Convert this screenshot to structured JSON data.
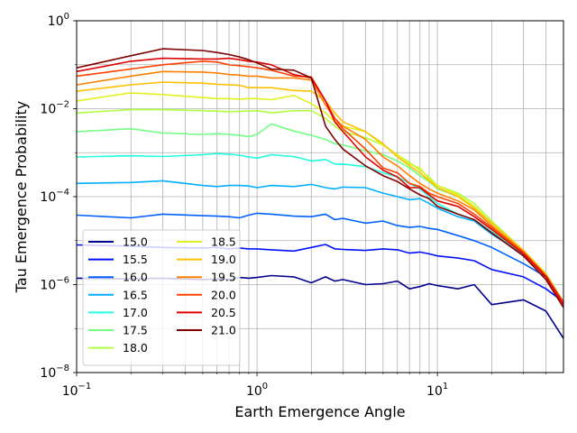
{
  "chart_data": {
    "type": "line",
    "title": "",
    "xlabel": "Earth Emergence Angle",
    "ylabel": "Tau Emergence Probability",
    "xscale": "log",
    "yscale": "log",
    "xlim": [
      0.1,
      50
    ],
    "ylim": [
      1e-08,
      1
    ],
    "grid": true,
    "legend_position": "lower-left",
    "x_major_ticks": [
      {
        "value": 0.1,
        "label": "10",
        "exp": "−1"
      },
      {
        "value": 1,
        "label": "10",
        "exp": "0"
      },
      {
        "value": 10,
        "label": "10",
        "exp": "1"
      }
    ],
    "y_major_ticks": [
      {
        "value": 1e-08,
        "label": "10",
        "exp": "−8"
      },
      {
        "value": 1e-06,
        "label": "10",
        "exp": "−6"
      },
      {
        "value": 0.0001,
        "label": "10",
        "exp": "−4"
      },
      {
        "value": 0.01,
        "label": "10",
        "exp": "−2"
      },
      {
        "value": 1,
        "label": "10",
        "exp": "0"
      }
    ],
    "x": [
      0.1,
      0.2,
      0.3,
      0.5,
      0.6,
      0.7,
      0.8,
      0.9,
      1.0,
      1.2,
      1.6,
      2.0,
      2.4,
      2.7,
      3.0,
      4.0,
      5.0,
      6.0,
      7.0,
      8.0,
      9.0,
      10.0,
      13.0,
      16.0,
      20.0,
      30.0,
      40.0,
      50.0
    ],
    "series": [
      {
        "name": "15.0",
        "color": "#00008f",
        "values": [
          1.4e-06,
          1.35e-06,
          1.4e-06,
          1.3e-06,
          1.35e-06,
          1.3e-06,
          1.45e-06,
          1.4e-06,
          1.45e-06,
          1.6e-06,
          1.5e-06,
          1.1e-06,
          1.5e-06,
          1.2e-06,
          1.3e-06,
          1e-06,
          1.05e-06,
          1.2e-06,
          8e-07,
          9e-07,
          1.05e-06,
          9.5e-07,
          8e-07,
          1e-06,
          3.5e-07,
          4.5e-07,
          2.5e-07,
          6e-08
        ]
      },
      {
        "name": "15.5",
        "color": "#0010ff",
        "values": [
          8e-06,
          7.5e-06,
          7e-06,
          6.8e-06,
          7e-06,
          6.5e-06,
          6.8e-06,
          6.5e-06,
          6.5e-06,
          6.2e-06,
          5.8e-06,
          7e-06,
          8.2e-06,
          6.5e-06,
          6.3e-06,
          6e-06,
          6.5e-06,
          6.2e-06,
          5.2e-06,
          5.5e-06,
          5e-06,
          4.5e-06,
          4e-06,
          3.5e-06,
          2.2e-06,
          1.5e-06,
          8e-07,
          4e-07
        ]
      },
      {
        "name": "16.0",
        "color": "#0060ff",
        "values": [
          3.8e-05,
          3.3e-05,
          4e-05,
          3.7e-05,
          3.6e-05,
          3.5e-05,
          3.3e-05,
          3.8e-05,
          4.2e-05,
          4e-05,
          3.6e-05,
          3.5e-05,
          4e-05,
          3e-05,
          3.2e-05,
          2.5e-05,
          2.8e-05,
          2.2e-05,
          2e-05,
          2.1e-05,
          1.9e-05,
          1.8e-05,
          1.3e-05,
          1e-05,
          7e-06,
          3e-06,
          1.5e-06,
          4e-07
        ]
      },
      {
        "name": "16.5",
        "color": "#00b0ff",
        "values": [
          0.0002,
          0.00021,
          0.00023,
          0.00018,
          0.00017,
          0.00018,
          0.00018,
          0.000175,
          0.00016,
          0.00018,
          0.00017,
          0.00019,
          0.00016,
          0.00015,
          0.000165,
          0.00016,
          0.00012,
          0.0001,
          8.5e-05,
          9e-05,
          7e-05,
          5.5e-05,
          3.5e-05,
          2.8e-05,
          1.4e-05,
          5e-06,
          1.6e-06,
          4e-07
        ]
      },
      {
        "name": "17.0",
        "color": "#20ffe0",
        "values": [
          0.0008,
          0.00085,
          0.00082,
          0.0009,
          0.00095,
          0.00092,
          0.00088,
          0.0008,
          0.00075,
          0.0009,
          0.00082,
          0.00065,
          0.0007,
          0.00055,
          0.00055,
          0.00048,
          0.00035,
          0.00028,
          0.0002,
          0.00015,
          0.0001,
          7e-05,
          4e-05,
          3e-05,
          1.6e-05,
          5e-06,
          1.8e-06,
          4e-07
        ]
      },
      {
        "name": "17.5",
        "color": "#70ff80",
        "values": [
          0.003,
          0.0035,
          0.0028,
          0.0026,
          0.0027,
          0.0026,
          0.0025,
          0.0023,
          0.0026,
          0.0045,
          0.0031,
          0.0025,
          0.002,
          0.0016,
          0.0015,
          0.0011,
          0.0009,
          0.00065,
          0.00045,
          0.0003,
          0.00022,
          0.00015,
          0.0001,
          6e-05,
          2.5e-05,
          6e-06,
          1.8e-06,
          4e-07
        ]
      },
      {
        "name": "18.0",
        "color": "#b0ff40",
        "values": [
          0.008,
          0.0095,
          0.0095,
          0.009,
          0.0088,
          0.0085,
          0.0087,
          0.0088,
          0.009,
          0.008,
          0.009,
          0.009,
          0.006,
          0.004,
          0.003,
          0.0022,
          0.0015,
          0.0009,
          0.0006,
          0.0004,
          0.00028,
          0.00018,
          0.00012,
          7e-05,
          2.8e-05,
          6e-06,
          1.8e-06,
          4e-07
        ]
      },
      {
        "name": "18.5",
        "color": "#e0f020",
        "values": [
          0.015,
          0.023,
          0.021,
          0.018,
          0.017,
          0.017,
          0.0165,
          0.017,
          0.017,
          0.016,
          0.02,
          0.013,
          0.008,
          0.005,
          0.004,
          0.003,
          0.0015,
          0.0009,
          0.00055,
          0.00045,
          0.00025,
          0.00018,
          0.00011,
          6e-05,
          2.5e-05,
          6e-06,
          1.7e-06,
          4e-07
        ]
      },
      {
        "name": "19.0",
        "color": "#ffc000",
        "values": [
          0.025,
          0.035,
          0.04,
          0.038,
          0.036,
          0.035,
          0.034,
          0.03,
          0.03,
          0.03,
          0.026,
          0.025,
          0.015,
          0.008,
          0.005,
          0.003,
          0.0016,
          0.0008,
          0.0005,
          0.00035,
          0.00023,
          0.00016,
          0.0001,
          5.5e-05,
          2.5e-05,
          6e-06,
          1.7e-06,
          4e-07
        ]
      },
      {
        "name": "19.5",
        "color": "#ff8000",
        "values": [
          0.035,
          0.055,
          0.07,
          0.068,
          0.065,
          0.06,
          0.058,
          0.055,
          0.055,
          0.05,
          0.05,
          0.045,
          0.012,
          0.006,
          0.004,
          0.002,
          0.0008,
          0.0005,
          0.0003,
          0.0002,
          0.00015,
          0.00012,
          8e-05,
          5e-05,
          2.2e-05,
          5.5e-06,
          1.6e-06,
          4e-07
        ]
      },
      {
        "name": "20.0",
        "color": "#ff4000",
        "values": [
          0.055,
          0.08,
          0.1,
          0.12,
          0.115,
          0.1,
          0.095,
          0.09,
          0.085,
          0.075,
          0.055,
          0.053,
          0.015,
          0.006,
          0.0035,
          0.0012,
          0.00045,
          0.00035,
          0.0002,
          0.00017,
          0.00012,
          0.0001,
          7e-05,
          4e-05,
          2e-05,
          5.5e-06,
          1.6e-06,
          4e-07
        ]
      },
      {
        "name": "20.5",
        "color": "#e00000",
        "values": [
          0.07,
          0.12,
          0.14,
          0.135,
          0.135,
          0.14,
          0.13,
          0.12,
          0.115,
          0.1,
          0.06,
          0.05,
          0.015,
          0.005,
          0.003,
          0.0008,
          0.0004,
          0.00028,
          0.00016,
          0.00016,
          0.00011,
          8e-05,
          6e-05,
          3.5e-05,
          1.8e-05,
          5e-06,
          1.5e-06,
          3.5e-07
        ]
      },
      {
        "name": "21.0",
        "color": "#800000",
        "values": [
          0.085,
          0.16,
          0.23,
          0.21,
          0.19,
          0.17,
          0.15,
          0.13,
          0.11,
          0.08,
          0.075,
          0.05,
          0.004,
          0.002,
          0.0012,
          0.0005,
          0.0003,
          0.00022,
          0.00015,
          0.00011,
          9e-05,
          6e-05,
          4e-05,
          3e-05,
          1.5e-05,
          4.5e-06,
          1.3e-06,
          3e-07
        ]
      }
    ]
  }
}
